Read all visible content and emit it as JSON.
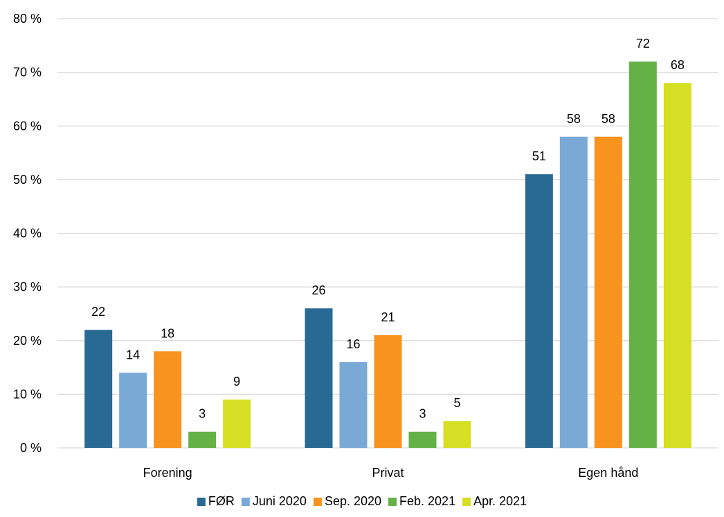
{
  "chart_data": {
    "type": "bar",
    "title": "",
    "xlabel": "",
    "ylabel": "",
    "ylim": [
      0,
      80
    ],
    "y_ticks": [
      "0 %",
      "10 %",
      "20 %",
      "30 %",
      "40 %",
      "50 %",
      "60 %",
      "70 %",
      "80 %"
    ],
    "categories": [
      "Forening",
      "Privat",
      "Egen hånd"
    ],
    "series": [
      {
        "name": "FØR",
        "color": "#286a93",
        "values": [
          22,
          26,
          51
        ]
      },
      {
        "name": "Juni 2020",
        "color": "#7aa9d6",
        "values": [
          14,
          16,
          58
        ]
      },
      {
        "name": "Sep. 2020",
        "color": "#f7931e",
        "values": [
          18,
          21,
          58
        ]
      },
      {
        "name": "Feb. 2021",
        "color": "#64b246",
        "values": [
          3,
          3,
          72
        ]
      },
      {
        "name": "Apr. 2021",
        "color": "#d6df23",
        "values": [
          9,
          5,
          68
        ]
      }
    ],
    "grid": true,
    "legend_position": "bottom"
  }
}
